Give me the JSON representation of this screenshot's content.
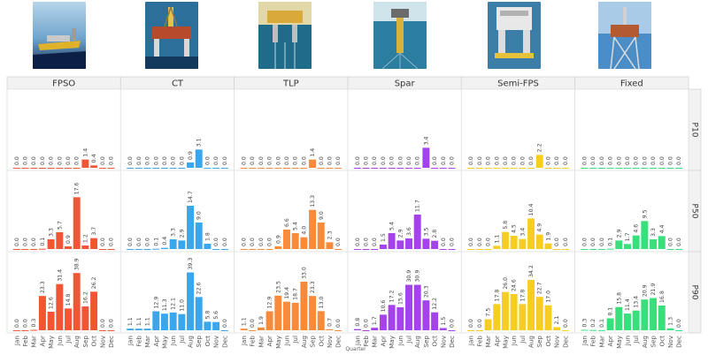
{
  "chart_data": {
    "type": "bar",
    "title": "",
    "xlabel": "Quarter",
    "ylabel": "",
    "grid": false,
    "legend": "none",
    "months": [
      "Jan",
      "Feb",
      "Mar",
      "Apr",
      "May",
      "Jun",
      "Jul",
      "Aug",
      "Sep",
      "Oct",
      "Nov",
      "Dec"
    ],
    "columns": [
      {
        "name": "FPSO",
        "color": "#f25533"
      },
      {
        "name": "CT",
        "color": "#3aa7ec"
      },
      {
        "name": "TLP",
        "color": "#f88a3a"
      },
      {
        "name": "Spar",
        "color": "#a542ec"
      },
      {
        "name": "Semi-FPS",
        "color": "#f7cd22"
      },
      {
        "name": "Fixed",
        "color": "#37e07a"
      }
    ],
    "rows": [
      "P10",
      "P50",
      "P90"
    ],
    "scale_max": {
      "P10": 12,
      "P50": 24,
      "P90": 48
    },
    "values": {
      "P10": [
        [
          0.0,
          0.0,
          0.0,
          0.0,
          0.0,
          0.0,
          0.0,
          0.0,
          1.4,
          0.4,
          0.0,
          0.0
        ],
        [
          0.0,
          0.0,
          0.0,
          0.0,
          0.0,
          0.0,
          0.0,
          0.9,
          3.1,
          0.0,
          0.0,
          0.0
        ],
        [
          0.0,
          0.0,
          0.0,
          0.0,
          0.0,
          0.0,
          0.0,
          0.0,
          1.4,
          0.0,
          0.0,
          0.0
        ],
        [
          0.0,
          0.0,
          0.0,
          0.0,
          0.0,
          0.0,
          0.0,
          0.0,
          3.4,
          0.0,
          0.0,
          0.0
        ],
        [
          0.0,
          0.0,
          0.0,
          0.0,
          0.0,
          0.0,
          0.0,
          0.0,
          2.2,
          0.0,
          0.0,
          0.0
        ],
        [
          0.0,
          0.0,
          0.0,
          0.0,
          0.0,
          0.0,
          0.0,
          0.0,
          0.0,
          0.0,
          0.0,
          0.0
        ]
      ],
      "P50": [
        [
          0.0,
          0.0,
          0.0,
          0.1,
          3.3,
          5.7,
          0.9,
          17.6,
          1.2,
          3.7,
          0.0,
          0.0
        ],
        [
          0.0,
          0.0,
          0.0,
          0.1,
          0.4,
          3.3,
          2.9,
          14.7,
          9.0,
          1.8,
          0.0,
          0.0
        ],
        [
          0.0,
          0.0,
          0.0,
          0.0,
          0.9,
          6.6,
          5.4,
          4.0,
          13.3,
          9.0,
          2.3,
          0.0
        ],
        [
          0.0,
          0.0,
          0.0,
          1.5,
          5.4,
          2.9,
          3.6,
          11.7,
          3.5,
          2.8,
          0.0,
          0.0
        ],
        [
          0.0,
          0.0,
          0.0,
          1.1,
          5.8,
          4.5,
          3.4,
          10.4,
          4.9,
          1.9,
          0.0,
          0.0
        ],
        [
          0.0,
          0.0,
          0.0,
          0.1,
          2.9,
          1.7,
          4.6,
          9.5,
          3.3,
          4.4,
          0.0,
          0.0
        ]
      ],
      "P90": [
        [
          0.0,
          0.0,
          0.3,
          23.3,
          12.6,
          31.4,
          14.8,
          38.9,
          16.2,
          26.2,
          0.0,
          0.0
        ],
        [
          1.1,
          1.1,
          1.1,
          12.9,
          11.3,
          12.1,
          11.0,
          39.3,
          22.6,
          5.8,
          5.6,
          0.0
        ],
        [
          1.1,
          0.0,
          1.9,
          12.9,
          23.5,
          19.4,
          18.7,
          33.0,
          23.3,
          13.0,
          0.7,
          0.0
        ],
        [
          0.8,
          0.0,
          1.7,
          10.6,
          17.2,
          15.6,
          30.9,
          30.9,
          20.3,
          12.2,
          1.5,
          0.0
        ],
        [
          0.0,
          0.0,
          7.5,
          17.8,
          26.0,
          24.6,
          17.8,
          34.2,
          22.7,
          17.0,
          2.1,
          0.0
        ],
        [
          0.3,
          0.2,
          0.1,
          8.1,
          15.8,
          11.4,
          13.4,
          20.9,
          21.9,
          16.8,
          1.3,
          0.0
        ]
      ]
    }
  }
}
